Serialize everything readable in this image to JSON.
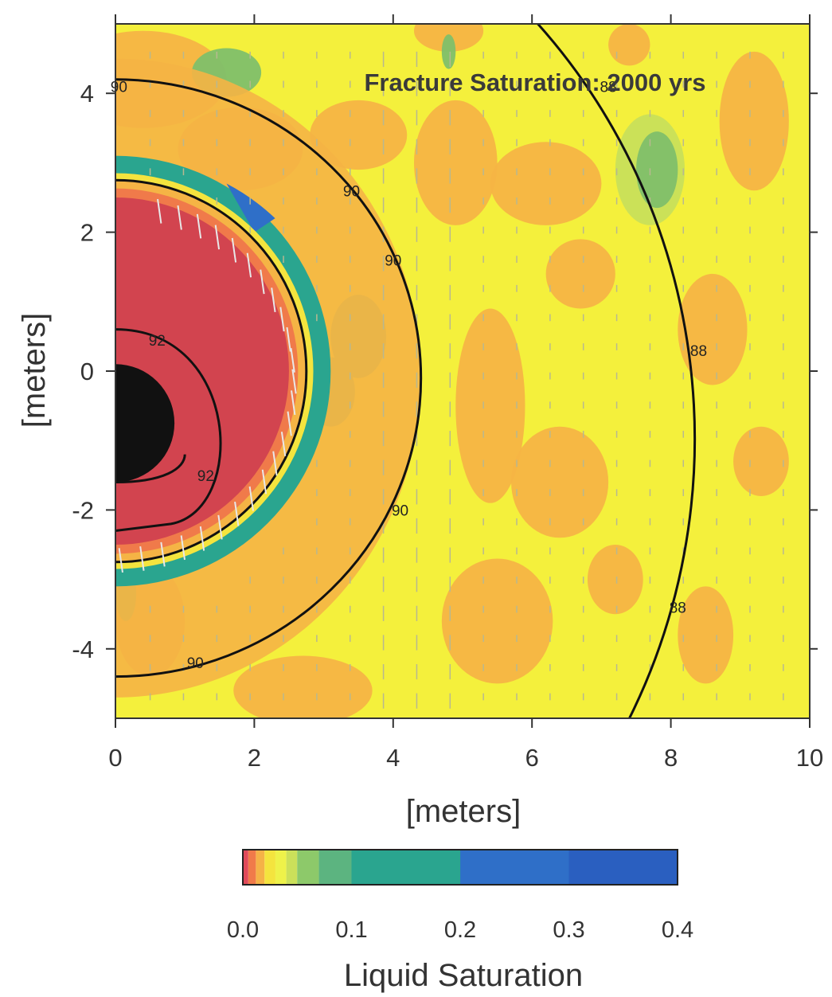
{
  "chart_data": {
    "type": "heatmap",
    "title": "Fracture Saturation: 2000 yrs",
    "xlabel": "[meters]",
    "ylabel": "[meters]",
    "xlim": [
      0,
      10
    ],
    "ylim": [
      -5,
      5
    ],
    "x_ticks": [
      "0",
      "2",
      "4",
      "6",
      "8",
      "10"
    ],
    "y_ticks": [
      "4",
      "2",
      "0",
      "-2",
      "-4"
    ],
    "colorbar": {
      "label": "Liquid Saturation",
      "range": [
        0.0,
        0.4
      ],
      "ticks": [
        "0.0",
        "0.1",
        "0.2",
        "0.3",
        "0.4"
      ],
      "stops": [
        {
          "value": 0.0,
          "color": "#e04a5a"
        },
        {
          "value": 0.005,
          "color": "#f07a4a"
        },
        {
          "value": 0.012,
          "color": "#f5b247"
        },
        {
          "value": 0.02,
          "color": "#f4e43e"
        },
        {
          "value": 0.03,
          "color": "#eef24a"
        },
        {
          "value": 0.04,
          "color": "#cbe05a"
        },
        {
          "value": 0.05,
          "color": "#8dc96a"
        },
        {
          "value": 0.07,
          "color": "#5cb480"
        },
        {
          "value": 0.1,
          "color": "#2aa58f"
        },
        {
          "value": 0.2,
          "color": "#1e9a98"
        },
        {
          "value": 0.2001,
          "color": "#2f6fc8"
        },
        {
          "value": 0.3,
          "color": "#2a5fc0"
        },
        {
          "value": 0.4,
          "color": "#2448a8"
        }
      ]
    },
    "background_color": "#f4f03c",
    "contours": [
      {
        "level": "88",
        "shape": "arc",
        "center": [
          0,
          0
        ],
        "radius": 8.5
      },
      {
        "level": "90",
        "shape": "arc",
        "center": [
          0,
          -0.1
        ],
        "radius": 4.3
      },
      {
        "level": "92",
        "shape": "arc",
        "center": [
          0,
          -0.7
        ],
        "radius": 1.4
      }
    ],
    "contour_labels": [
      {
        "text": "88",
        "x": 7.1,
        "y": 4.1
      },
      {
        "text": "88",
        "x": 8.4,
        "y": 0.3
      },
      {
        "text": "88",
        "x": 8.1,
        "y": -3.4
      },
      {
        "text": "90",
        "x": 0.05,
        "y": 4.1
      },
      {
        "text": "90",
        "x": 3.4,
        "y": 2.6
      },
      {
        "text": "90",
        "x": 4.0,
        "y": 1.6
      },
      {
        "text": "90",
        "x": 4.1,
        "y": -2.0
      },
      {
        "text": "90",
        "x": 1.15,
        "y": -4.2
      },
      {
        "text": "92",
        "x": 0.6,
        "y": 0.45
      },
      {
        "text": "92",
        "x": 1.3,
        "y": -1.5
      }
    ],
    "features": {
      "drift_radius_m": 2.75,
      "waste_package_center": [
        0,
        -0.75
      ],
      "waste_package_radius_m": 0.85,
      "dry_zone_color": "#d2444f",
      "waste_package_color": "#111111"
    }
  }
}
